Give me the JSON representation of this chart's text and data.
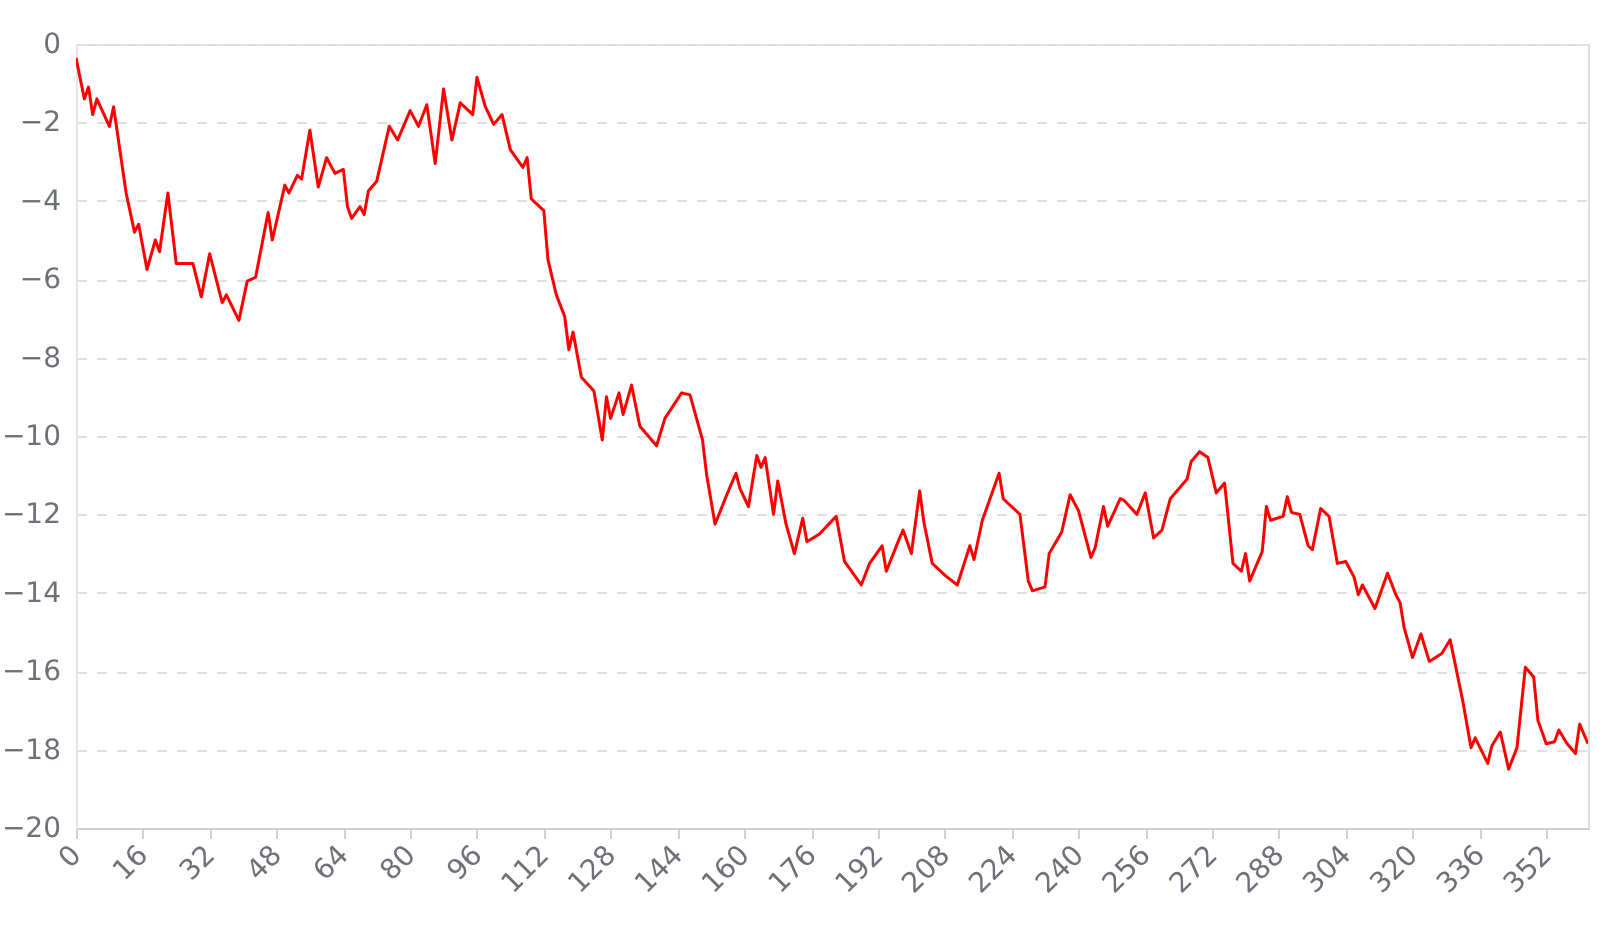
{
  "chart_data": {
    "type": "line",
    "x": [
      0,
      2,
      3,
      4,
      5,
      8,
      9,
      12,
      14,
      15,
      17,
      19,
      20,
      22,
      24,
      28,
      30,
      32,
      35,
      36,
      39,
      41,
      43,
      46,
      47,
      50,
      51,
      53,
      54,
      56,
      58,
      60,
      62,
      64,
      65,
      66,
      68,
      69,
      70,
      72,
      75,
      77,
      80,
      82,
      84,
      86,
      88,
      90,
      92,
      95,
      96,
      98,
      100,
      102,
      104,
      107,
      108,
      109,
      112,
      113,
      115,
      117,
      118,
      119,
      121,
      124,
      126,
      127,
      128,
      130,
      131,
      133,
      135,
      139,
      141,
      145,
      147,
      150,
      151,
      153,
      156,
      158,
      159,
      161,
      163,
      164,
      165,
      167,
      168,
      170,
      172,
      174,
      175,
      178,
      182,
      184,
      188,
      190,
      193,
      194,
      197,
      198,
      200,
      202,
      203,
      205,
      208,
      211,
      214,
      215,
      217,
      221,
      222,
      226,
      228,
      229,
      232,
      233,
      236,
      238,
      240,
      241,
      243,
      244,
      246,
      247,
      250,
      251,
      254,
      256,
      258,
      260,
      262,
      266,
      267,
      269,
      271,
      273,
      275,
      277,
      279,
      280,
      281,
      284,
      285,
      286,
      289,
      290,
      291,
      293,
      295,
      296,
      298,
      300,
      302,
      304,
      306,
      307,
      308,
      311,
      314,
      316,
      317,
      318,
      320,
      322,
      324,
      327,
      329,
      332,
      334,
      335,
      338,
      339,
      341,
      343,
      345,
      347,
      349,
      350,
      352,
      354,
      355,
      357,
      359,
      360,
      362
    ],
    "values": [
      -0.35,
      -1.4,
      -1.1,
      -1.8,
      -1.4,
      -2.1,
      -1.6,
      -3.8,
      -4.8,
      -4.6,
      -5.75,
      -5.0,
      -5.3,
      -3.8,
      -5.6,
      -5.6,
      -6.45,
      -5.35,
      -6.6,
      -6.4,
      -7.05,
      -6.05,
      -5.95,
      -4.3,
      -5.0,
      -3.6,
      -3.8,
      -3.35,
      -3.45,
      -2.2,
      -3.65,
      -2.9,
      -3.3,
      -3.2,
      -4.15,
      -4.45,
      -4.15,
      -4.35,
      -3.75,
      -3.5,
      -2.1,
      -2.45,
      -1.7,
      -2.1,
      -1.55,
      -3.05,
      -1.15,
      -2.45,
      -1.5,
      -1.8,
      -0.85,
      -1.6,
      -2.05,
      -1.8,
      -2.7,
      -3.15,
      -2.9,
      -3.95,
      -4.25,
      -5.5,
      -6.4,
      -6.95,
      -7.8,
      -7.35,
      -8.5,
      -8.85,
      -10.1,
      -9.0,
      -9.55,
      -8.9,
      -9.45,
      -8.7,
      -9.75,
      -10.25,
      -9.55,
      -8.9,
      -8.95,
      -10.1,
      -11.0,
      -12.25,
      -11.45,
      -10.95,
      -11.35,
      -11.8,
      -10.5,
      -10.8,
      -10.55,
      -12.0,
      -11.15,
      -12.25,
      -13.0,
      -12.1,
      -12.7,
      -12.5,
      -12.05,
      -13.2,
      -13.8,
      -13.25,
      -12.8,
      -13.45,
      -12.65,
      -12.4,
      -13.0,
      -11.4,
      -12.2,
      -13.25,
      -13.55,
      -13.8,
      -12.8,
      -13.15,
      -12.15,
      -10.95,
      -11.6,
      -12.0,
      -13.7,
      -13.95,
      -13.85,
      -13.0,
      -12.45,
      -11.5,
      -11.9,
      -12.3,
      -13.1,
      -12.85,
      -11.8,
      -12.3,
      -11.6,
      -11.65,
      -12.0,
      -11.45,
      -12.6,
      -12.4,
      -11.6,
      -11.1,
      -10.65,
      -10.4,
      -10.55,
      -11.45,
      -11.2,
      -13.25,
      -13.45,
      -13.0,
      -13.7,
      -12.95,
      -11.8,
      -12.15,
      -12.05,
      -11.55,
      -11.95,
      -12.0,
      -12.8,
      -12.9,
      -11.85,
      -12.05,
      -13.25,
      -13.2,
      -13.6,
      -14.05,
      -13.8,
      -14.4,
      -13.5,
      -14.05,
      -14.25,
      -14.9,
      -15.65,
      -15.05,
      -15.75,
      -15.55,
      -15.2,
      -16.75,
      -17.95,
      -17.7,
      -18.35,
      -17.9,
      -17.55,
      -18.5,
      -17.95,
      -15.9,
      -16.15,
      -17.25,
      -17.85,
      -17.8,
      -17.5,
      -17.85,
      -18.1,
      -17.35,
      -17.85
    ],
    "color": "#ff0000",
    "line_style": "solid",
    "grid": "y",
    "xlim": [
      0,
      362
    ],
    "xticks": [
      0,
      16,
      32,
      48,
      64,
      80,
      96,
      112,
      128,
      144,
      160,
      176,
      192,
      208,
      224,
      240,
      256,
      272,
      288,
      304,
      320,
      336,
      352
    ],
    "ylim": [
      -20,
      0
    ],
    "yticks": [
      -20,
      -18,
      -16,
      -14,
      -12,
      -10,
      -8,
      -6,
      -4,
      -2,
      0
    ]
  }
}
